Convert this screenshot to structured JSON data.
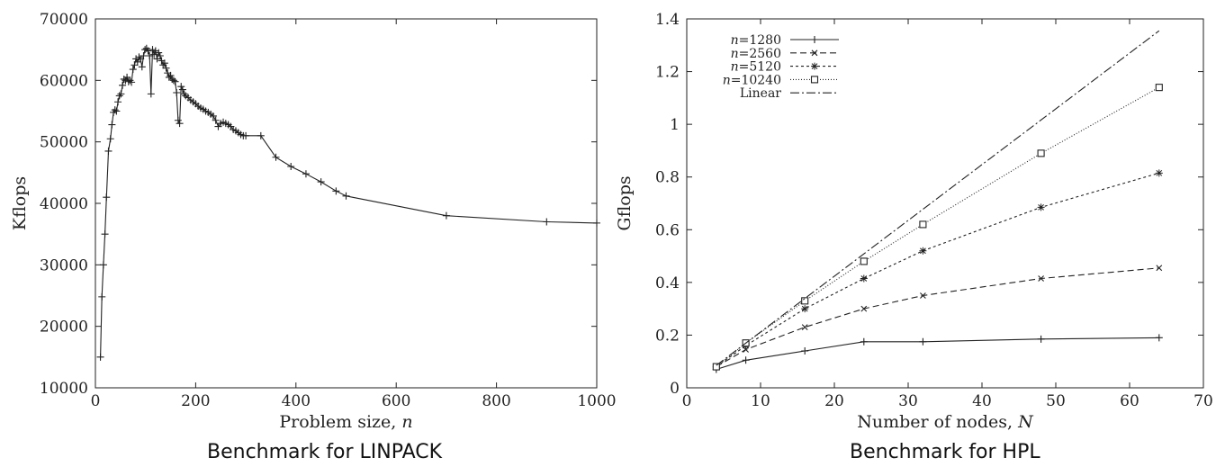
{
  "captions": {
    "left": "Benchmark for LINPACK",
    "right": "Benchmark for HPL"
  },
  "chart_data": [
    {
      "type": "line",
      "title": "",
      "xlabel": "Problem size, n",
      "ylabel": "Kflops",
      "xlim": [
        0,
        1000
      ],
      "ylim": [
        10000,
        70000
      ],
      "xticks": [
        0,
        200,
        400,
        600,
        800,
        1000
      ],
      "yticks": [
        10000,
        20000,
        30000,
        40000,
        50000,
        60000,
        70000
      ],
      "grid": false,
      "series": [
        {
          "x": [
            10,
            13,
            16,
            19,
            22,
            26,
            30,
            33,
            36,
            39,
            42,
            45,
            48,
            51,
            54,
            57,
            60,
            63,
            66,
            69,
            72,
            75,
            78,
            81,
            84,
            87,
            90,
            93,
            96,
            99,
            102,
            105,
            108,
            111,
            114,
            117,
            120,
            123,
            126,
            129,
            132,
            135,
            138,
            141,
            144,
            147,
            150,
            153,
            156,
            159,
            162,
            165,
            168,
            171,
            174,
            177,
            180,
            185,
            190,
            195,
            200,
            205,
            210,
            215,
            220,
            225,
            230,
            235,
            240,
            245,
            250,
            255,
            260,
            265,
            270,
            275,
            280,
            285,
            290,
            295,
            300,
            330,
            360,
            390,
            420,
            450,
            480,
            500,
            700,
            900,
            1000
          ],
          "values": [
            15000,
            24800,
            30000,
            35000,
            41000,
            48500,
            50500,
            52800,
            54800,
            55200,
            55000,
            56500,
            57500,
            57800,
            59200,
            60200,
            60000,
            60500,
            59800,
            60000,
            59700,
            61800,
            62500,
            63500,
            63000,
            63800,
            63500,
            62200,
            64000,
            65000,
            65200,
            64800,
            64000,
            57800,
            65000,
            64200,
            64800,
            63500,
            64500,
            64000,
            63200,
            62500,
            62800,
            62000,
            61200,
            60500,
            60800,
            60200,
            60000,
            59800,
            58000,
            53500,
            53000,
            59000,
            58500,
            57800,
            57500,
            57200,
            56800,
            56500,
            56200,
            55800,
            55500,
            55300,
            55000,
            54800,
            54500,
            54200,
            53500,
            52500,
            53000,
            53200,
            53000,
            52800,
            52500,
            52000,
            51800,
            51500,
            51200,
            51000,
            51000,
            51000,
            47500,
            46000,
            44800,
            43500,
            42000,
            41200,
            38000,
            37000,
            36800
          ]
        }
      ]
    },
    {
      "type": "line",
      "title": "",
      "xlabel": "Number of nodes, N",
      "ylabel": "Gflops",
      "xlim": [
        0,
        70
      ],
      "ylim": [
        0,
        1.4
      ],
      "xticks": [
        0,
        10,
        20,
        30,
        40,
        50,
        60,
        70
      ],
      "yticks": [
        0,
        0.2,
        0.4,
        0.6,
        0.8,
        1,
        1.2,
        1.4
      ],
      "ytick_labels": [
        "0",
        "0.2",
        "0.4",
        "0.6",
        "0.8",
        "1",
        "1.2",
        "1.4"
      ],
      "grid": false,
      "legend": "top-left",
      "x": [
        4,
        8,
        16,
        24,
        32,
        48,
        64
      ],
      "series": [
        {
          "name": "n=1280",
          "values": [
            0.07,
            0.105,
            0.14,
            0.175,
            0.175,
            0.185,
            0.19
          ],
          "marker": "plus",
          "dash": ""
        },
        {
          "name": "n=2560",
          "values": [
            0.08,
            0.145,
            0.23,
            0.3,
            0.35,
            0.415,
            0.455
          ],
          "marker": "cross",
          "dash": "7,4"
        },
        {
          "name": "n=5120",
          "values": [
            0.08,
            0.16,
            0.3,
            0.415,
            0.52,
            0.685,
            0.815
          ],
          "marker": "star",
          "dash": "3,3"
        },
        {
          "name": "n=10240",
          "values": [
            0.08,
            0.17,
            0.33,
            0.48,
            0.62,
            0.89,
            1.14
          ],
          "marker": "square",
          "dash": "1,2"
        },
        {
          "name": "Linear",
          "x": [
            4,
            64
          ],
          "values": [
            0.085,
            1.355
          ],
          "marker": "none",
          "dash": "10,3,2,3"
        }
      ]
    }
  ]
}
